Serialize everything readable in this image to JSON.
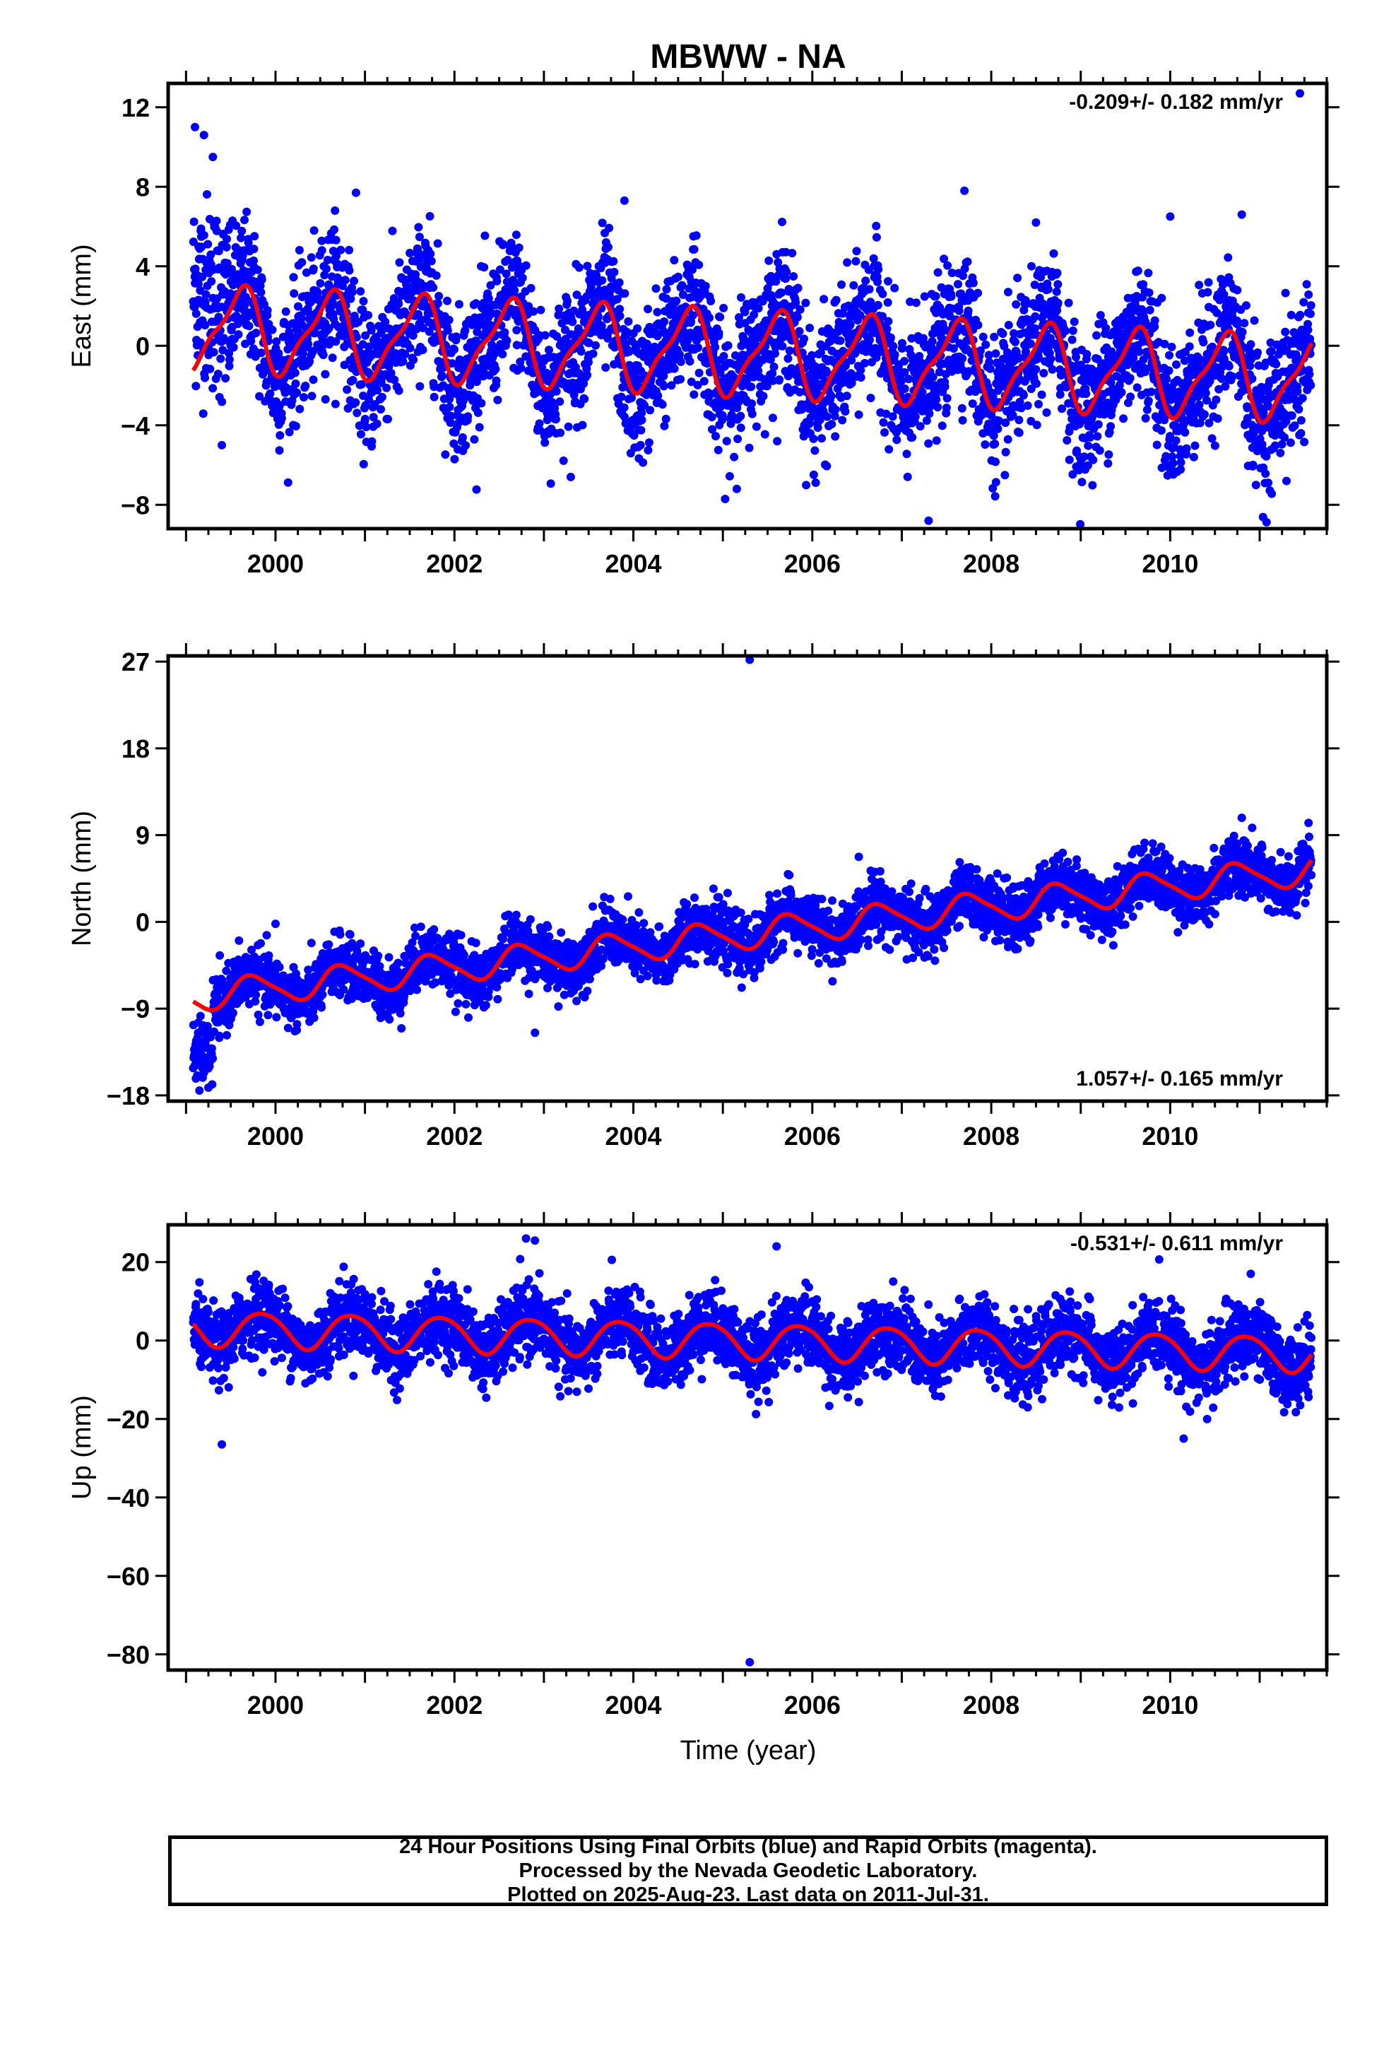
{
  "title": "MBWW - NA",
  "xlabel": "Time (year)",
  "colors": {
    "points": "#0000ff",
    "fit": "#ff0000",
    "axis": "#000000"
  },
  "footer": {
    "line1": "24 Hour Positions Using Final Orbits (blue) and Rapid Orbits (magenta).",
    "line2": "Processed by the Nevada Geodetic Laboratory.",
    "line3": "Plotted on 2025-Aug-23. Last data on 2011-Jul-31."
  },
  "chart_data": [
    {
      "type": "scatter",
      "name": "east",
      "ylabel": "East (mm)",
      "rate_label": "-0.209+/- 0.182 mm/yr",
      "rate_position": "top-right",
      "xlim": [
        1998.8,
        2011.75
      ],
      "ylim": [
        -9.2,
        13.2
      ],
      "x_ticks": [
        2000,
        2002,
        2004,
        2006,
        2008,
        2010
      ],
      "y_ticks": [
        12,
        8,
        4,
        0,
        -4,
        -8
      ],
      "y_tick_labels": [
        "12",
        "8",
        "4",
        "0",
        "−4",
        "−8"
      ],
      "grid": false,
      "data_range": [
        1999.08,
        2011.58
      ],
      "model": {
        "offset": 0.9,
        "rate": -0.209,
        "annual_amp": 2.0,
        "annual_phase": 0.35,
        "semiannual_amp": 0.6,
        "semiannual_phase": 0.1
      },
      "scatter_sd": 1.7,
      "points_per_year": 330,
      "outliers": [
        [
          1999.1,
          11.0
        ],
        [
          1999.2,
          10.6
        ],
        [
          1999.3,
          9.5
        ],
        [
          1999.4,
          -5.0
        ],
        [
          2000.9,
          7.7
        ],
        [
          2003.3,
          -6.6
        ],
        [
          2003.9,
          7.3
        ],
        [
          2007.3,
          -8.8
        ],
        [
          2007.7,
          7.8
        ],
        [
          2008.5,
          6.2
        ],
        [
          2010.0,
          6.5
        ],
        [
          2010.8,
          6.6
        ],
        [
          2011.45,
          12.7
        ],
        [
          2011.3,
          -6.8
        ]
      ]
    },
    {
      "type": "scatter",
      "name": "north",
      "ylabel": "North (mm)",
      "rate_label": "1.057+/- 0.165 mm/yr",
      "rate_position": "bottom-right",
      "xlim": [
        1998.8,
        2011.75
      ],
      "ylim": [
        -18.6,
        27.6
      ],
      "x_ticks": [
        2000,
        2002,
        2004,
        2006,
        2008,
        2010
      ],
      "y_ticks": [
        27,
        18,
        9,
        0,
        -9,
        -18
      ],
      "y_tick_labels": [
        "27",
        "18",
        "9",
        "0",
        "−9",
        "−18"
      ],
      "grid": false,
      "data_range": [
        1999.08,
        2011.58
      ],
      "model": {
        "offset": -7.8,
        "rate": 1.057,
        "annual_amp": 1.5,
        "annual_phase": 0.5,
        "semiannual_amp": 0.3,
        "semiannual_phase": 0.0
      },
      "scatter_sd": 1.5,
      "points_per_year": 330,
      "early_segment": {
        "start": 1999.08,
        "end": 1999.3,
        "offset": -13.5
      },
      "outliers": [
        [
          1999.15,
          -17.5
        ],
        [
          1999.25,
          -17.2
        ],
        [
          2000.0,
          -0.2
        ],
        [
          2002.9,
          -11.5
        ],
        [
          2005.3,
          27.2
        ],
        [
          2010.8,
          10.8
        ]
      ]
    },
    {
      "type": "scatter",
      "name": "up",
      "ylabel": "Up (mm)",
      "rate_label": "-0.531+/- 0.611 mm/yr",
      "rate_position": "top-right",
      "xlim": [
        1998.8,
        2011.75
      ],
      "ylim": [
        -84,
        29.5
      ],
      "x_ticks": [
        2000,
        2002,
        2004,
        2006,
        2008,
        2010
      ],
      "y_ticks": [
        20,
        0,
        -20,
        -40,
        -60,
        -80
      ],
      "y_tick_labels": [
        "20",
        "0",
        "−20",
        "−40",
        "−60",
        "−80"
      ],
      "grid": false,
      "data_range": [
        1999.08,
        2011.58
      ],
      "model": {
        "offset": 3.2,
        "rate": -0.531,
        "annual_amp": 4.5,
        "annual_phase": 0.6,
        "semiannual_amp": 0.5,
        "semiannual_phase": 0.0
      },
      "scatter_sd": 4.5,
      "points_per_year": 330,
      "outliers": [
        [
          1999.4,
          -26.5
        ],
        [
          2002.8,
          26.0
        ],
        [
          2002.9,
          25.5
        ],
        [
          2005.3,
          -82.0
        ],
        [
          2005.6,
          24.0
        ],
        [
          2010.15,
          -25.0
        ],
        [
          2010.9,
          17.0
        ]
      ]
    }
  ]
}
